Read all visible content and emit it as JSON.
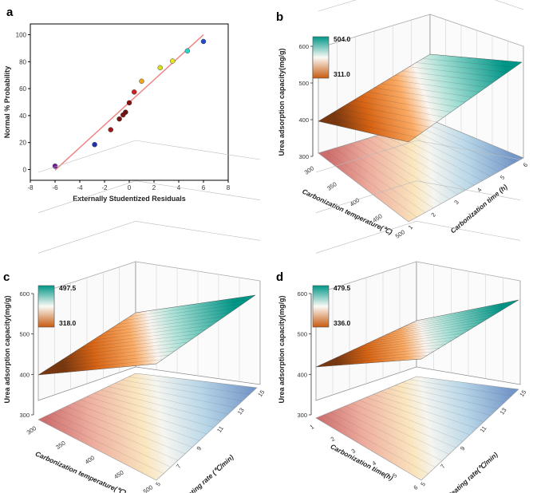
{
  "chart_data": [
    {
      "panel": "a",
      "type": "scatter",
      "title": "",
      "xlabel": "Externally Studentized Residuals",
      "ylabel": "Normal % Probability",
      "xlim": [
        -8,
        8
      ],
      "ylim": [
        -8,
        108
      ],
      "xticks": [
        "-8",
        "-6",
        "-4",
        "-2",
        "0",
        "2",
        "4",
        "6",
        "8"
      ],
      "yticks": [
        "0",
        "20",
        "40",
        "60",
        "80",
        "100"
      ],
      "points": [
        {
          "x": -6.0,
          "y": 2.5,
          "color": "#6a1b9a"
        },
        {
          "x": -2.8,
          "y": 18.5,
          "color": "#2233aa"
        },
        {
          "x": -1.5,
          "y": 29.5,
          "color": "#9b1b1b"
        },
        {
          "x": -0.8,
          "y": 37.5,
          "color": "#7a1010"
        },
        {
          "x": -0.5,
          "y": 40.5,
          "color": "#801515"
        },
        {
          "x": -0.3,
          "y": 42.5,
          "color": "#6a1010"
        },
        {
          "x": 0.0,
          "y": 49.5,
          "color": "#8a1010"
        },
        {
          "x": 0.4,
          "y": 57.5,
          "color": "#cc2222"
        },
        {
          "x": 1.0,
          "y": 65.5,
          "color": "#f7a21b"
        },
        {
          "x": 2.5,
          "y": 75.5,
          "color": "#d8e020"
        },
        {
          "x": 3.5,
          "y": 80.5,
          "color": "#e6e62a"
        },
        {
          "x": 4.7,
          "y": 88.0,
          "color": "#2dd4c8"
        },
        {
          "x": 6.0,
          "y": 95.0,
          "color": "#1f4cc8"
        }
      ],
      "fit_line": {
        "x": [
          -6.0,
          6.0
        ],
        "y": [
          -0.5,
          100.0
        ],
        "color": "#f08080"
      }
    },
    {
      "panel": "b",
      "type": "surface3d",
      "zlabel": "Urea adsorption capacity(mg/g)",
      "xlabel": "Carbonization temperature(℃)",
      "ylabel": "Carbonization time (h)",
      "zticks": [
        "300",
        "400",
        "500",
        "600"
      ],
      "xticks": [
        "300",
        "350",
        "400",
        "450",
        "500"
      ],
      "yticks": [
        "1",
        "2",
        "3",
        "4",
        "5",
        "6"
      ],
      "zlim": [
        300,
        600
      ],
      "legend_max": "504.0",
      "legend_min": "311.0"
    },
    {
      "panel": "c",
      "type": "surface3d",
      "zlabel": "Urea adsorption capacity(mg/g)",
      "xlabel": "Carbonization temperature(℃)",
      "ylabel": "Heating rate (℃/min)",
      "zticks": [
        "300",
        "400",
        "500",
        "600"
      ],
      "xticks": [
        "300",
        "350",
        "400",
        "450",
        "500"
      ],
      "yticks": [
        "5",
        "7",
        "9",
        "11",
        "13",
        "15"
      ],
      "zlim": [
        300,
        600
      ],
      "legend_max": "497.5",
      "legend_min": "318.0"
    },
    {
      "panel": "d",
      "type": "surface3d",
      "zlabel": "Urea adsorption capacity(mg/g)",
      "xlabel": "Carbonization time(h)",
      "ylabel": "Heating rate(℃/min)",
      "zticks": [
        "300",
        "400",
        "500",
        "600"
      ],
      "xticks": [
        "1",
        "2",
        "3",
        "4",
        "5",
        "6"
      ],
      "yticks": [
        "5",
        "7",
        "9",
        "11",
        "13",
        "15"
      ],
      "zlim": [
        300,
        600
      ],
      "legend_max": "479.5",
      "legend_min": "336.0"
    }
  ],
  "panels": {
    "a": {
      "label": "a"
    },
    "b": {
      "label": "b"
    },
    "c": {
      "label": "c"
    },
    "d": {
      "label": "d"
    }
  }
}
